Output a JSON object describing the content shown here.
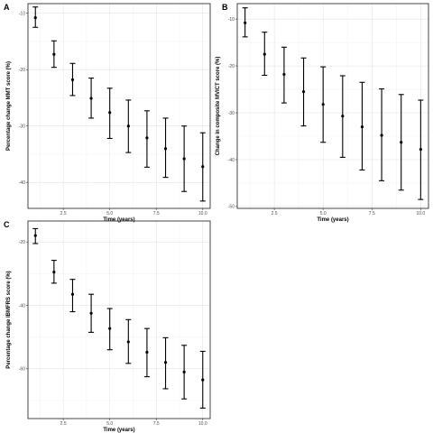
{
  "chart_data": [
    {
      "type": "errorbar",
      "panel": "A",
      "xlabel": "Time (years)",
      "ylabel": "Percentage change MMT score (%)",
      "x": [
        1,
        2,
        3,
        4,
        5,
        6,
        7,
        8,
        9,
        10
      ],
      "y": [
        -10.8,
        -17.3,
        -21.8,
        -25.1,
        -27.6,
        -30.0,
        -32.1,
        -34.0,
        -35.8,
        -37.2
      ],
      "lower": [
        -12.5,
        -19.6,
        -24.6,
        -28.6,
        -32.2,
        -34.7,
        -37.3,
        -39.1,
        -41.6,
        -43.3
      ],
      "upper": [
        -8.9,
        -14.9,
        -18.9,
        -21.5,
        -23.3,
        -25.4,
        -27.3,
        -28.6,
        -30.0,
        -31.2
      ],
      "xlim": [
        0.6,
        10.4
      ],
      "ylim": [
        -44.6,
        -8.3
      ],
      "xticks": [
        2.5,
        5.0,
        7.5,
        10.0
      ],
      "xtick_labels": [
        "2.5",
        "5.0",
        "7.5",
        "10.0"
      ],
      "yticks": [
        -10,
        -20,
        -30,
        -40
      ],
      "ytick_labels": [
        "-10",
        "-20",
        "-30",
        "-40"
      ]
    },
    {
      "type": "errorbar",
      "panel": "B",
      "xlabel": "Time (years)",
      "ylabel": "Change in composite MVICT score (%)",
      "x": [
        1,
        2,
        3,
        4,
        5,
        6,
        7,
        8,
        9,
        10
      ],
      "y": [
        -10.8,
        -17.5,
        -21.8,
        -25.5,
        -28.2,
        -30.7,
        -33.0,
        -34.8,
        -36.3,
        -37.8
      ],
      "lower": [
        -13.8,
        -22.0,
        -27.9,
        -32.8,
        -36.3,
        -39.5,
        -42.2,
        -44.5,
        -46.5,
        -48.5
      ],
      "upper": [
        -7.6,
        -12.8,
        -16.0,
        -18.3,
        -20.2,
        -22.1,
        -23.5,
        -24.9,
        -26.1,
        -27.3
      ],
      "xlim": [
        0.6,
        10.4
      ],
      "ylim": [
        -50.4,
        -6.7
      ],
      "xticks": [
        2.5,
        5.0,
        7.5,
        10.0
      ],
      "xtick_labels": [
        "2.5",
        "5.0",
        "7.5",
        "10.0"
      ],
      "yticks": [
        -10,
        -20,
        -30,
        -40,
        -50
      ],
      "ytick_labels": [
        "-10",
        "-20",
        "-30",
        "-40",
        "-50"
      ]
    },
    {
      "type": "errorbar",
      "panel": "C",
      "xlabel": "Time (years)",
      "ylabel": "Percentage change IBMFRS score (%)",
      "x": [
        1,
        2,
        3,
        4,
        5,
        6,
        7,
        8,
        9,
        10
      ],
      "y": [
        -18.0,
        -29.5,
        -36.5,
        -42.5,
        -47.3,
        -51.5,
        -54.8,
        -58.0,
        -61.0,
        -63.5
      ],
      "lower": [
        -20.5,
        -33.0,
        -42.0,
        -48.5,
        -54.0,
        -58.3,
        -62.5,
        -66.3,
        -69.5,
        -72.4
      ],
      "upper": [
        -15.8,
        -25.8,
        -31.8,
        -36.5,
        -41.0,
        -44.5,
        -47.3,
        -50.2,
        -52.6,
        -54.5
      ],
      "xlim": [
        0.6,
        10.4
      ],
      "ylim": [
        -75.7,
        -13.4
      ],
      "xticks": [
        2.5,
        5.0,
        7.5,
        10.0
      ],
      "xtick_labels": [
        "2.5",
        "5.0",
        "7.5",
        "10.0"
      ],
      "yticks": [
        -20,
        -40,
        -60
      ],
      "ytick_labels": [
        "-20",
        "-40",
        "-60"
      ]
    }
  ]
}
